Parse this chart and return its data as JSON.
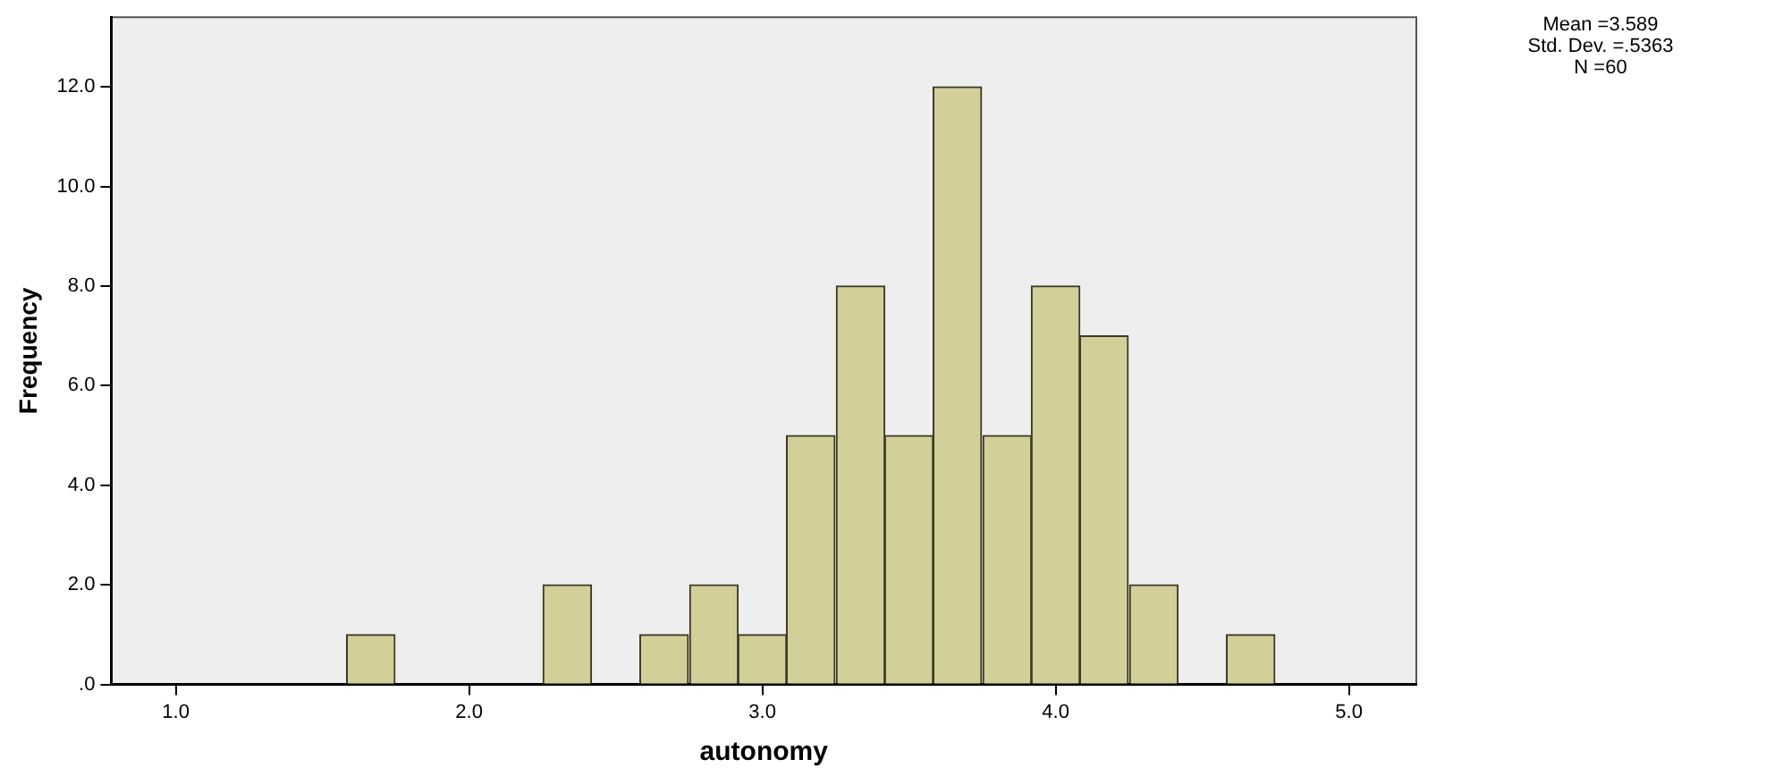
{
  "chart_data": {
    "type": "histogram",
    "xlabel": "autonomy",
    "ylabel": "Frequency",
    "bins": [
      1.58,
      1.75,
      1.92,
      2.08,
      2.25,
      2.42,
      2.58,
      2.75,
      2.92,
      3.08,
      3.25,
      3.42,
      3.58,
      3.75,
      3.92,
      4.08,
      4.25,
      4.42,
      4.58,
      4.75
    ],
    "values": [
      1,
      0,
      0,
      0,
      2,
      0,
      1,
      2,
      1,
      5,
      8,
      5,
      12,
      5,
      8,
      7,
      2,
      0,
      1
    ],
    "color": "#d3cf98",
    "xlim": [
      0.78,
      5.23
    ],
    "xticks": [
      {
        "value": 1,
        "label": "1.0"
      },
      {
        "value": 2,
        "label": "2.0"
      },
      {
        "value": 3,
        "label": "3.0"
      },
      {
        "value": 4,
        "label": "4.0"
      },
      {
        "value": 5,
        "label": "5.0"
      }
    ],
    "ylim": [
      0,
      13.4
    ],
    "yticks": [
      {
        "value": 0,
        "label": ".0"
      },
      {
        "value": 2,
        "label": "2.0"
      },
      {
        "value": 4,
        "label": "4.0"
      },
      {
        "value": 6,
        "label": "6.0"
      },
      {
        "value": 8,
        "label": "8.0"
      },
      {
        "value": 10,
        "label": "10.0"
      },
      {
        "value": 12,
        "label": "12.0"
      }
    ],
    "grid": false,
    "legend": false,
    "annotations": [
      "Mean =3.589",
      "Std. Dev. =.5363",
      "N =60"
    ]
  }
}
